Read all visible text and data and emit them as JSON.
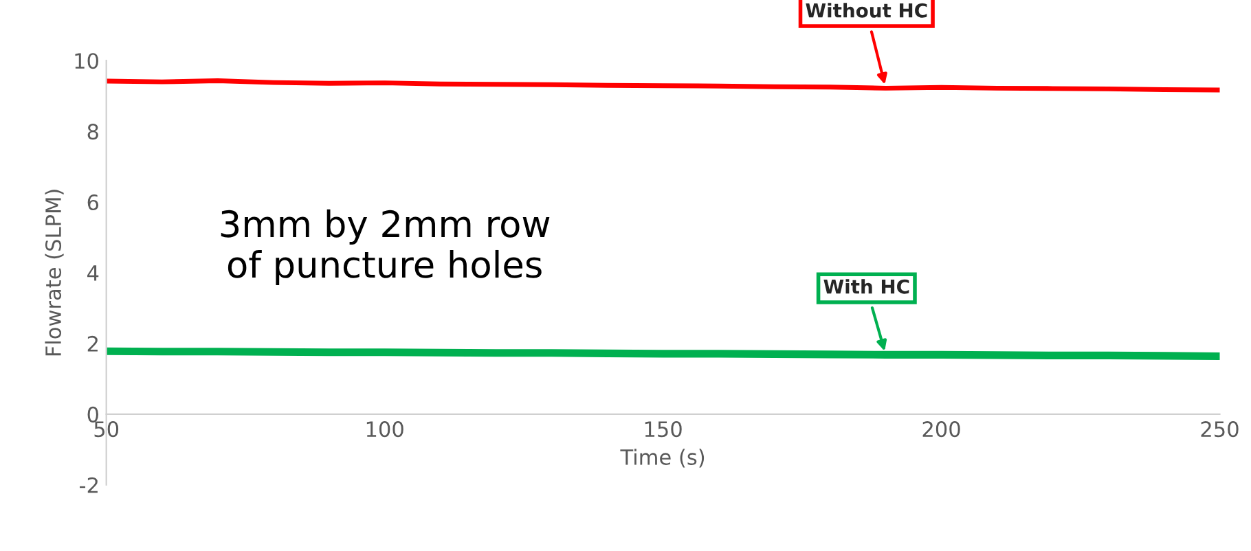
{
  "chart_data": {
    "type": "line",
    "xlabel": "Time (s)",
    "ylabel": "Flowrate (SLPM)",
    "x": [
      50,
      60,
      70,
      80,
      90,
      100,
      110,
      120,
      130,
      140,
      150,
      160,
      170,
      180,
      190,
      200,
      210,
      220,
      230,
      240,
      250
    ],
    "series": [
      {
        "name": "Without HC",
        "color": "#ff0000",
        "values": [
          9.42,
          9.4,
          9.43,
          9.38,
          9.36,
          9.37,
          9.34,
          9.33,
          9.32,
          9.3,
          9.29,
          9.28,
          9.26,
          9.25,
          9.22,
          9.24,
          9.22,
          9.21,
          9.2,
          9.18,
          9.17
        ]
      },
      {
        "name": "With HC",
        "color": "#00b050",
        "values": [
          1.78,
          1.77,
          1.77,
          1.76,
          1.75,
          1.75,
          1.74,
          1.73,
          1.73,
          1.72,
          1.71,
          1.71,
          1.7,
          1.69,
          1.68,
          1.68,
          1.67,
          1.66,
          1.66,
          1.65,
          1.64
        ]
      }
    ],
    "xlim": [
      50,
      250
    ],
    "xticks": [
      50,
      100,
      150,
      200,
      250
    ],
    "ylim": [
      -2,
      10
    ],
    "yticks": [
      -2,
      0,
      2,
      4,
      6,
      8,
      10
    ],
    "grid": false,
    "legend": false,
    "line_style": "solid",
    "marker": "none",
    "annotations": [
      "3mm by 2mm row\nof puncture holes"
    ]
  }
}
